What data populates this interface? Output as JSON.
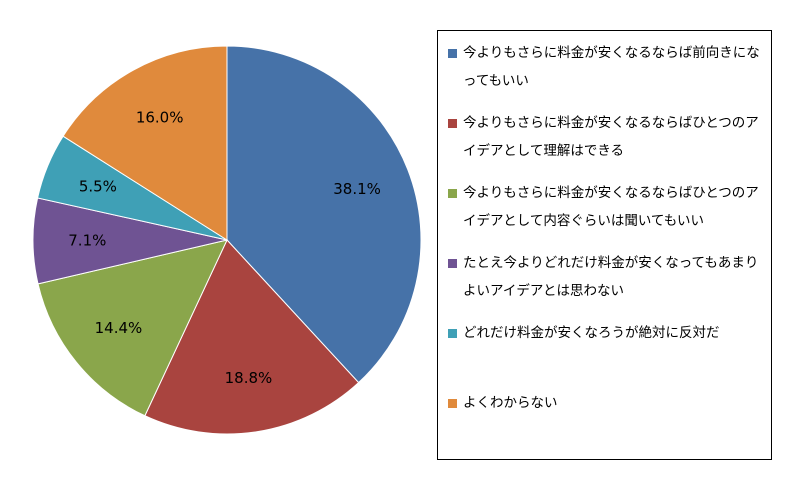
{
  "chart_data": {
    "type": "pie",
    "start_angle_deg": 0,
    "direction": "clockwise",
    "legend_position": "right",
    "slices": [
      {
        "label": "今よりもさらに料金が安くなるならば前向きになってもいい",
        "value": 38.1,
        "display": "38.1%",
        "color": "#4672A8"
      },
      {
        "label": "今よりもさらに料金が安くなるならばひとつのアイデアとして理解はできる",
        "value": 18.8,
        "display": "18.8%",
        "color": "#A9443F"
      },
      {
        "label": "今よりもさらに料金が安くなるならばひとつのアイデアとして内容ぐらいは聞いてもいい",
        "value": 14.4,
        "display": "14.4%",
        "color": "#8AA64B"
      },
      {
        "label": "たとえ今よりどれだけ料金が安くなってもあまりよいアイデアとは思わない",
        "value": 7.1,
        "display": "7.1%",
        "color": "#6F5393"
      },
      {
        "label": "どれだけ料金が安くなろうが絶対に反対だ",
        "value": 5.5,
        "display": "5.5%",
        "color": "#3FA0B6"
      },
      {
        "label": "よくわからない",
        "value": 16.0,
        "display": "16.0%",
        "color": "#E08A3C"
      }
    ]
  }
}
